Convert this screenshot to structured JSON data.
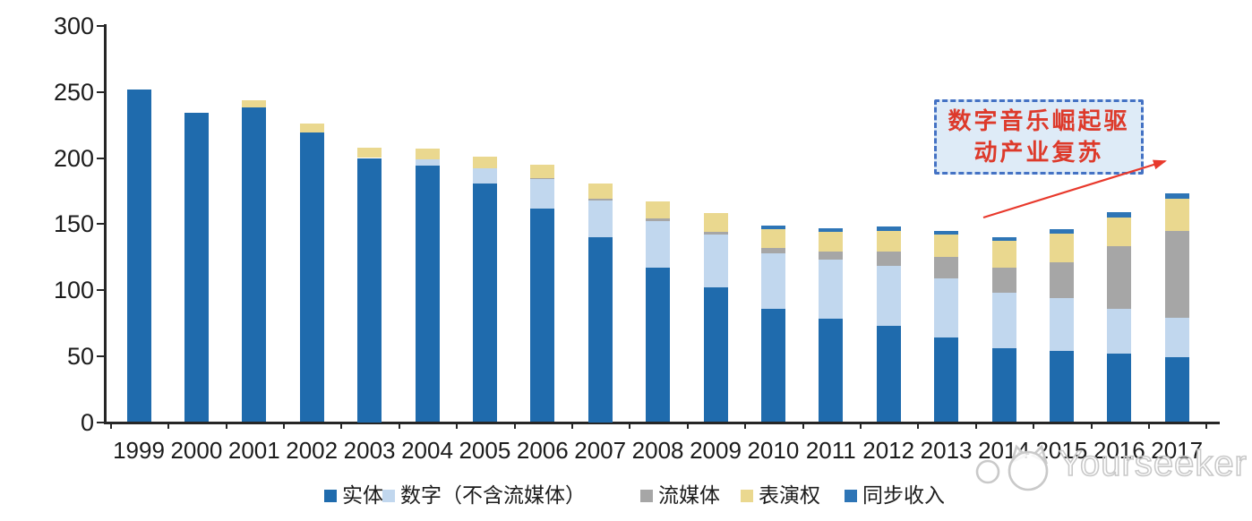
{
  "watermark": {
    "brand": "Yourseeker",
    "logo": "cat-logo"
  },
  "annotation": {
    "line1": "数字音乐崛起驱",
    "line2": "动产业复苏",
    "full_text": "数字音乐崛起驱动产业复苏",
    "text_color": "#DD3A2B",
    "box_fill": "#DEEBF7",
    "box_border_color": "#4472C4",
    "arrow_color": "#E8392C"
  },
  "chart_data": {
    "type": "bar",
    "stacked": true,
    "grid": false,
    "legend_position": "bottom",
    "ylim": [
      0,
      300
    ],
    "yticks": [
      0,
      50,
      100,
      150,
      200,
      250,
      300
    ],
    "categories": [
      "1999",
      "2000",
      "2001",
      "2002",
      "2003",
      "2004",
      "2005",
      "2006",
      "2007",
      "2008",
      "2009",
      "2010",
      "2011",
      "2012",
      "2013",
      "2014",
      "2015",
      "2016",
      "2017"
    ],
    "series": [
      {
        "key": "physical",
        "name": "实体",
        "color": "#1F6BAD",
        "values": [
          252,
          234,
          238,
          219,
          200,
          194,
          181,
          162,
          140,
          117,
          102,
          86,
          78,
          73,
          64,
          56,
          54,
          52,
          49
        ]
      },
      {
        "key": "digital",
        "name": "数字（不含流媒体）",
        "color": "#C1D7EE",
        "values": [
          0,
          0,
          0,
          0,
          0,
          5,
          11,
          22,
          28,
          35,
          40,
          42,
          45,
          45,
          45,
          42,
          40,
          34,
          30
        ]
      },
      {
        "key": "streaming",
        "name": "流媒体",
        "color": "#A6A6A6",
        "values": [
          0,
          0,
          0,
          0,
          0,
          0,
          0,
          1,
          1,
          2,
          2,
          4,
          6,
          11,
          16,
          19,
          27,
          47,
          66
        ]
      },
      {
        "key": "performance",
        "name": "表演权",
        "color": "#EAD88F",
        "values": [
          0,
          0,
          6,
          7,
          8,
          8,
          9,
          10,
          12,
          13,
          14,
          14,
          15,
          16,
          17,
          20,
          22,
          22,
          24
        ]
      },
      {
        "key": "sync",
        "name": "同步收入",
        "color": "#2E75B6",
        "values": [
          0,
          0,
          0,
          0,
          0,
          0,
          0,
          0,
          0,
          0,
          0,
          3,
          3,
          3,
          3,
          3,
          3,
          4,
          4
        ]
      }
    ],
    "axis_color": "#262626"
  }
}
